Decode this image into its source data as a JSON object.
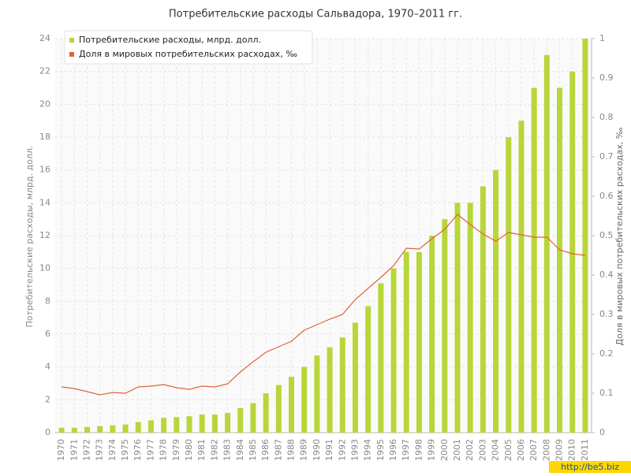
{
  "chart_data": {
    "type": "bar_line",
    "title": "Потребительские расходы Сальвадора, 1970–2011 гг.",
    "ylabel": "Потребительские расходы, млрд. долл.",
    "y2label": "Доля в мировых потребительских расходах, ‰",
    "categories": [
      "1970",
      "1971",
      "1972",
      "1973",
      "1974",
      "1975",
      "1976",
      "1977",
      "1978",
      "1979",
      "1980",
      "1981",
      "1982",
      "1983",
      "1984",
      "1985",
      "1986",
      "1987",
      "1988",
      "1989",
      "1990",
      "1991",
      "1992",
      "1993",
      "1994",
      "1995",
      "1996",
      "1997",
      "1998",
      "1999",
      "2000",
      "2001",
      "2002",
      "2003",
      "2004",
      "2005",
      "2006",
      "2007",
      "2008",
      "2009",
      "2010",
      "2011"
    ],
    "series": [
      {
        "name": "Потребительские расходы, млрд. долл.",
        "color": "#b8d639",
        "type": "bar",
        "values": [
          0.3,
          0.3,
          0.35,
          0.4,
          0.45,
          0.5,
          0.65,
          0.75,
          0.9,
          0.95,
          1.0,
          1.1,
          1.1,
          1.2,
          1.5,
          1.8,
          2.4,
          2.9,
          3.4,
          4.0,
          4.7,
          5.2,
          5.8,
          6.7,
          7.7,
          9.1,
          10.0,
          11.0,
          11.0,
          12.0,
          13.0,
          14.0,
          14.0,
          15.0,
          16.0,
          18.0,
          19.0,
          21.0,
          23.0,
          21.0,
          22.0,
          24.0
        ]
      },
      {
        "name": "Доля в мировых потребительских расходах, ‰",
        "color": "#e0633a",
        "type": "line",
        "axis": "y2",
        "values": [
          0.116,
          0.112,
          0.104,
          0.096,
          0.102,
          0.1,
          0.116,
          0.118,
          0.122,
          0.114,
          0.11,
          0.118,
          0.116,
          0.124,
          0.154,
          0.18,
          0.204,
          0.218,
          0.232,
          0.26,
          0.274,
          0.288,
          0.3,
          0.338,
          0.366,
          0.394,
          0.424,
          0.468,
          0.466,
          0.492,
          0.516,
          0.554,
          0.528,
          0.504,
          0.486,
          0.508,
          0.502,
          0.496,
          0.496,
          0.464,
          0.454,
          0.45
        ]
      }
    ],
    "ylim": [
      0,
      24
    ],
    "yticks": [
      0,
      2,
      4,
      6,
      8,
      10,
      12,
      14,
      16,
      18,
      20,
      22,
      24
    ],
    "y2lim": [
      0,
      1
    ],
    "y2ticks": [
      0,
      0.1,
      0.2,
      0.3,
      0.4,
      0.5,
      0.6,
      0.7,
      0.8,
      0.9,
      1
    ],
    "grid": true,
    "legend": "top-left",
    "watermark": "http://be5.biz"
  }
}
